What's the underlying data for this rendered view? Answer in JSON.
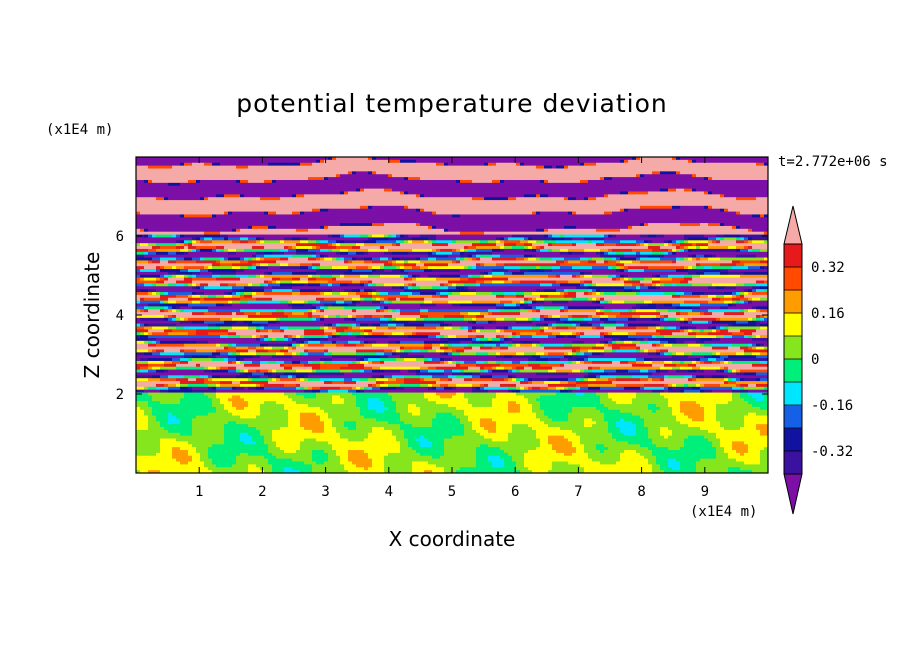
{
  "chart_data": {
    "type": "heatmap",
    "title": "potential temperature deviation",
    "xlabel": "X coordinate",
    "ylabel": "Z coordinate",
    "x_unit": "(x1E4 m)",
    "y_unit": "(x1E4 m)",
    "time_label": "t=2.772e+06 s",
    "xlim": [
      0,
      10
    ],
    "ylim": [
      0,
      8
    ],
    "xticks": [
      1,
      2,
      3,
      4,
      5,
      6,
      7,
      8,
      9
    ],
    "yticks": [
      2,
      4,
      6
    ],
    "colorbar": {
      "levels": [
        -0.4,
        -0.32,
        -0.24,
        -0.16,
        -0.08,
        0,
        0.08,
        0.16,
        0.24,
        0.32,
        0.4
      ],
      "labels": [
        "0.32",
        "0.16",
        "0",
        "-0.16",
        "-0.32"
      ],
      "label_values": [
        0.32,
        0.16,
        0,
        -0.16,
        -0.32
      ],
      "colors": [
        "#7b0fa6",
        "#3b12a0",
        "#1212a0",
        "#1560e6",
        "#00e6ff",
        "#00ee7a",
        "#86e61e",
        "#ffff00",
        "#ff9d00",
        "#ff4a00",
        "#e61a1a",
        "#f6aaa8"
      ],
      "extend": "both"
    },
    "layers": [
      {
        "z_range": [
          0,
          2
        ],
        "description_value": "mostly between 0 and 0.16"
      },
      {
        "z_range": [
          2,
          6
        ],
        "description_value": "stratified alternating bands from -0.4 to 0.4"
      },
      {
        "z_range": [
          6,
          8
        ],
        "description_value": "alternating bands below -0.4 and above 0.4"
      }
    ]
  }
}
